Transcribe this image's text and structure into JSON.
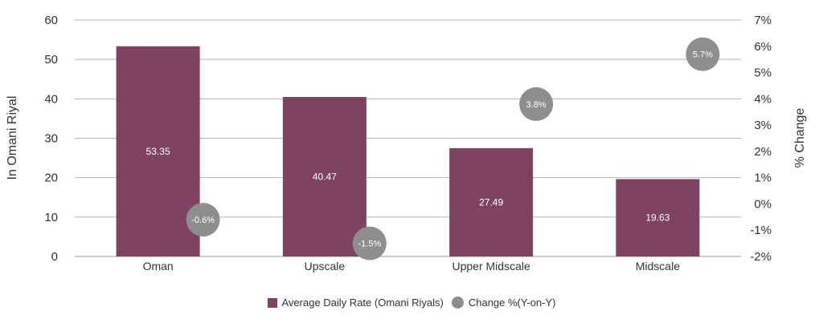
{
  "chart_data": {
    "type": "bar",
    "categories": [
      "Oman",
      "Upscale",
      "Upper Midscale",
      "Midscale"
    ],
    "series": [
      {
        "name": "Average Daily Rate (Omani Riyals)",
        "type": "bar",
        "axis": "left",
        "values": [
          53.35,
          40.47,
          27.49,
          19.63
        ],
        "data_labels": [
          "53.35",
          "40.47",
          "27.49",
          "19.63"
        ]
      },
      {
        "name": "Change %(Y-on-Y)",
        "type": "scatter",
        "axis": "right",
        "values": [
          -0.6,
          -1.5,
          3.8,
          5.7
        ],
        "data_labels": [
          "-0.6%",
          "-1.5%",
          "3.8%",
          "5.7%"
        ]
      }
    ],
    "ylabel": "In Omani Riyal",
    "y2label": "% Change",
    "ylim": [
      0,
      60
    ],
    "y2lim": [
      -2,
      7
    ],
    "yticks": [
      "0",
      "10",
      "20",
      "30",
      "40",
      "50",
      "60"
    ],
    "y2ticks": [
      "-2%",
      "-1%",
      "0%",
      "1%",
      "2%",
      "3%",
      "4%",
      "5%",
      "6%",
      "7%"
    ],
    "grid": true,
    "legend_position": "bottom-center"
  },
  "colors": {
    "bar": "#7e4262",
    "dot": "#8e8e8e",
    "grid": "#b5b5b5",
    "text": "#333333"
  },
  "legend": {
    "items": [
      {
        "label": "Average Daily Rate (Omani Riyals)",
        "marker": "square"
      },
      {
        "label": "Change %(Y-on-Y)",
        "marker": "circle"
      }
    ]
  }
}
